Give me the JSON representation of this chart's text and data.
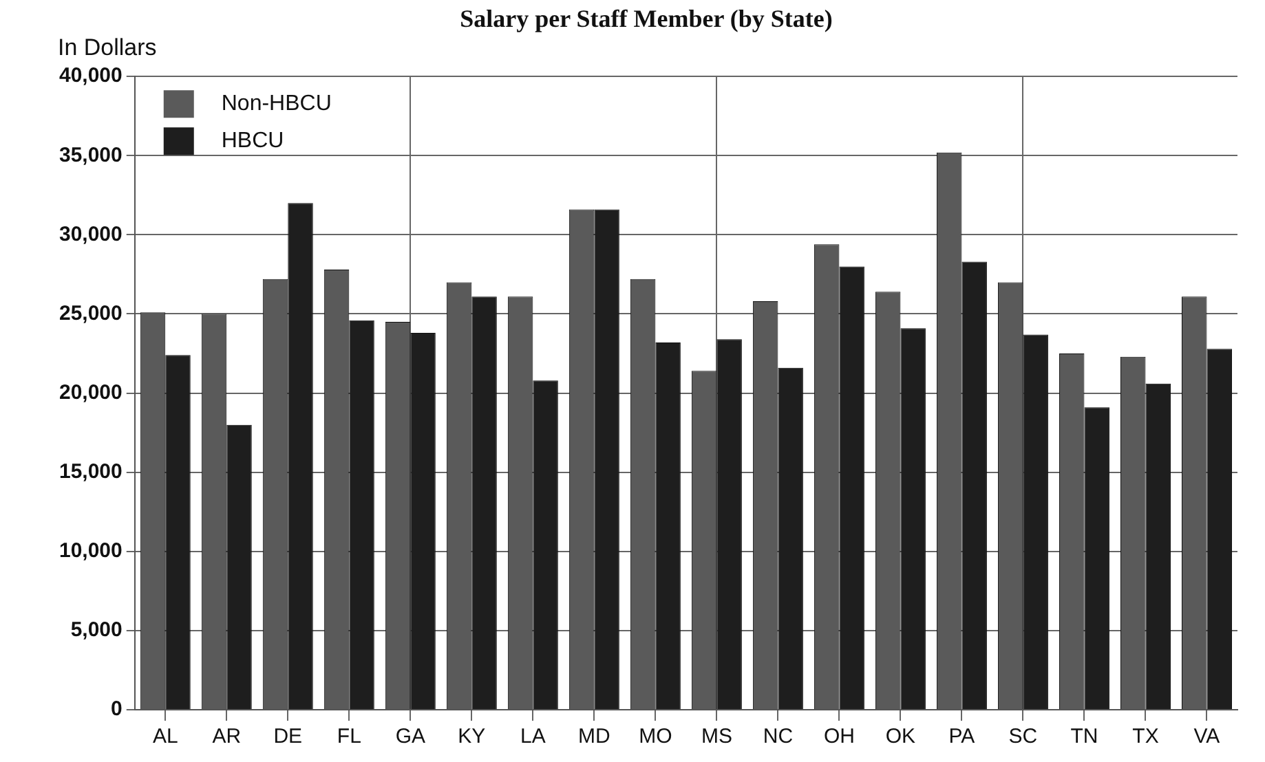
{
  "chart_data": {
    "type": "bar",
    "title": "Salary per Staff Member (by State)",
    "ylabel": "In Dollars",
    "categories": [
      "AL",
      "AR",
      "DE",
      "FL",
      "GA",
      "KY",
      "LA",
      "MD",
      "MO",
      "MS",
      "NC",
      "OH",
      "OK",
      "PA",
      "SC",
      "TN",
      "TX",
      "VA"
    ],
    "series": [
      {
        "name": "Non-HBCU",
        "color": "#5a5a5a",
        "values": [
          25100,
          25000,
          27200,
          27800,
          24500,
          27000,
          26100,
          31600,
          27200,
          21400,
          25800,
          29400,
          26400,
          35200,
          27000,
          22500,
          22300,
          26100
        ]
      },
      {
        "name": "HBCU",
        "color": "#1e1e1e",
        "values": [
          22400,
          18000,
          32000,
          24600,
          23800,
          26100,
          20800,
          31600,
          23200,
          23400,
          21600,
          28000,
          24100,
          28300,
          23700,
          19100,
          20600,
          22800
        ]
      }
    ],
    "ylim": [
      0,
      40000
    ],
    "yticks": [
      {
        "value": 0,
        "label": "0"
      },
      {
        "value": 5000,
        "label": "5,000"
      },
      {
        "value": 10000,
        "label": "10,000"
      },
      {
        "value": 15000,
        "label": "15,000"
      },
      {
        "value": 20000,
        "label": "20,000"
      },
      {
        "value": 25000,
        "label": "25,000"
      },
      {
        "value": 30000,
        "label": "30,000"
      },
      {
        "value": 35000,
        "label": "35,000"
      },
      {
        "value": 40000,
        "label": "40,000"
      }
    ],
    "grid": true,
    "legend": "top left"
  }
}
